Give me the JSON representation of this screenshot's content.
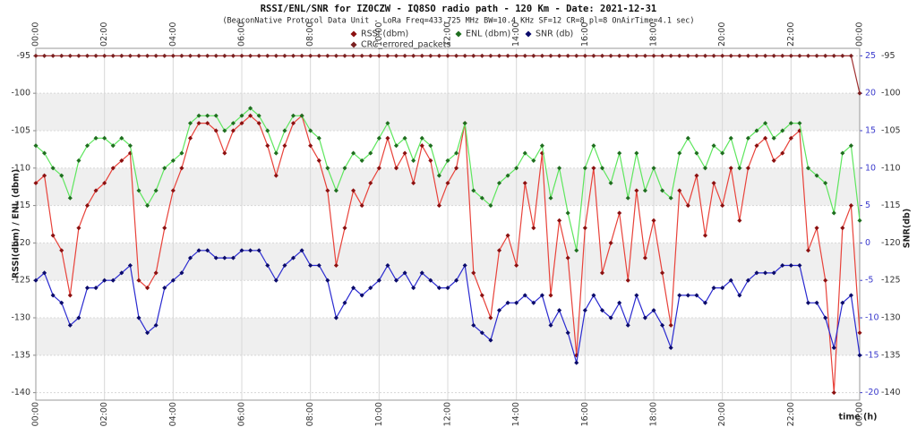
{
  "chart_data": {
    "type": "line",
    "title": "RSSI/ENL/SNR for IZ0CZW - IQ8SO radio path - 120 Km - Date: 2021-12-31",
    "subtitle": "(BeaconNative Protocol Data Unit - LoRa Freq=433.725 MHz BW=10.4 KHz SF=12 CR=8 pl=8 OnAirTime=4.1 sec)",
    "xlabel": "time (h)",
    "ylabel": "RSSI(dbm) / ENL (dbm)",
    "y2label": "SNR(db)",
    "grid": true,
    "y2tick_color": "#3a3acc",
    "xlim": [
      0,
      24
    ],
    "ylim": [
      -94,
      -141
    ],
    "y2lim": [
      26,
      -21
    ],
    "xticks": [
      {
        "value": 0,
        "label": "00:00"
      },
      {
        "value": 2,
        "label": "02:00"
      },
      {
        "value": 4,
        "label": "04:00"
      },
      {
        "value": 6,
        "label": "06:00"
      },
      {
        "value": 8,
        "label": "08:00"
      },
      {
        "value": 10,
        "label": "10:00"
      },
      {
        "value": 12,
        "label": "12:00"
      },
      {
        "value": 14,
        "label": "14:00"
      },
      {
        "value": 16,
        "label": "16:00"
      },
      {
        "value": 18,
        "label": "18:00"
      },
      {
        "value": 20,
        "label": "20:00"
      },
      {
        "value": 22,
        "label": "22:00"
      },
      {
        "value": 24,
        "label": "00:00"
      }
    ],
    "yticks": [
      -95,
      -100,
      -105,
      -110,
      -115,
      -120,
      -125,
      -130,
      -135,
      -140
    ],
    "y2ticks": [
      25,
      20,
      15,
      10,
      5,
      0,
      -5,
      -10,
      -15,
      -20
    ],
    "x": [
      0,
      0.25,
      0.5,
      0.75,
      1,
      1.25,
      1.5,
      1.75,
      2,
      2.25,
      2.5,
      2.75,
      3,
      3.25,
      3.5,
      3.75,
      4,
      4.25,
      4.5,
      4.75,
      5,
      5.25,
      5.5,
      5.75,
      6,
      6.25,
      6.5,
      6.75,
      7,
      7.25,
      7.5,
      7.75,
      8,
      8.25,
      8.5,
      8.75,
      9,
      9.25,
      9.5,
      9.75,
      10,
      10.25,
      10.5,
      10.75,
      11,
      11.25,
      11.5,
      11.75,
      12,
      12.25,
      12.5,
      12.75,
      13,
      13.25,
      13.5,
      13.75,
      14,
      14.25,
      14.5,
      14.75,
      15,
      15.25,
      15.5,
      15.75,
      16,
      16.25,
      16.5,
      16.75,
      17,
      17.25,
      17.5,
      17.75,
      18,
      18.25,
      18.5,
      18.75,
      19,
      19.25,
      19.5,
      19.75,
      20,
      20.25,
      20.5,
      20.75,
      21,
      21.25,
      21.5,
      21.75,
      22,
      22.25,
      22.5,
      22.75,
      23,
      23.25,
      23.5,
      23.75,
      24
    ],
    "series": [
      {
        "name": "RSSI (dbm)",
        "color": "#e8423a",
        "marker_color": "#8b1010",
        "values": [
          -112,
          -111,
          -119,
          -121,
          -127,
          -118,
          -115,
          -113,
          -112,
          -110,
          -109,
          -108,
          -125,
          -126,
          -124,
          -118,
          -113,
          -110,
          -106,
          -104,
          -104,
          -105,
          -108,
          -105,
          -104,
          -103,
          -104,
          -107,
          -111,
          -107,
          -104,
          -103,
          -107,
          -109,
          -113,
          -123,
          -118,
          -113,
          -115,
          -112,
          -110,
          -106,
          -110,
          -108,
          -112,
          -107,
          -109,
          -115,
          -112,
          -110,
          -104,
          -124,
          -127,
          -130,
          -121,
          -119,
          -123,
          -112,
          -118,
          -108,
          -127,
          -117,
          -122,
          -135,
          -118,
          -110,
          -124,
          -120,
          -116,
          -125,
          -113,
          -122,
          -117,
          -124,
          -131,
          -113,
          -115,
          -111,
          -119,
          -112,
          -115,
          -110,
          -117,
          -110,
          -107,
          -106,
          -109,
          -108,
          -106,
          -105,
          -121,
          -118,
          -125,
          -140,
          -118,
          -115,
          -132
        ]
      },
      {
        "name": "ENL (dbm)",
        "color": "#5ee65e",
        "marker_color": "#1f6e1f",
        "values": [
          -107,
          -108,
          -110,
          -111,
          -114,
          -109,
          -107,
          -106,
          -106,
          -107,
          -106,
          -107,
          -113,
          -115,
          -113,
          -110,
          -109,
          -108,
          -104,
          -103,
          -103,
          -103,
          -105,
          -104,
          -103,
          -102,
          -103,
          -105,
          -108,
          -105,
          -103,
          -103,
          -105,
          -106,
          -110,
          -113,
          -110,
          -108,
          -109,
          -108,
          -106,
          -104,
          -107,
          -106,
          -109,
          -106,
          -107,
          -111,
          -109,
          -108,
          -104,
          -113,
          -114,
          -115,
          -112,
          -111,
          -110,
          -108,
          -109,
          -107,
          -114,
          -110,
          -116,
          -121,
          -110,
          -107,
          -110,
          -112,
          -108,
          -114,
          -108,
          -113,
          -110,
          -113,
          -114,
          -108,
          -106,
          -108,
          -110,
          -107,
          -108,
          -106,
          -110,
          -106,
          -105,
          -104,
          -106,
          -105,
          -104,
          -104,
          -110,
          -111,
          -112,
          -116,
          -108,
          -107,
          -117
        ]
      },
      {
        "name": "SNR (db)",
        "color": "#2a2ad0",
        "marker_color": "#0a0a6a",
        "axis": "y2",
        "values": [
          -5,
          -4,
          -7,
          -8,
          -11,
          -10,
          -6,
          -6,
          -5,
          -5,
          -4,
          -3,
          -10,
          -12,
          -11,
          -6,
          -5,
          -4,
          -2,
          -1,
          -1,
          -2,
          -2,
          -2,
          -1,
          -1,
          -1,
          -3,
          -5,
          -3,
          -2,
          -1,
          -3,
          -3,
          -5,
          -10,
          -8,
          -6,
          -7,
          -6,
          -5,
          -3,
          -5,
          -4,
          -6,
          -4,
          -5,
          -6,
          -6,
          -5,
          -3,
          -11,
          -12,
          -13,
          -9,
          -8,
          -8,
          -7,
          -8,
          -7,
          -11,
          -9,
          -12,
          -16,
          -9,
          -7,
          -9,
          -10,
          -8,
          -11,
          -7,
          -10,
          -9,
          -11,
          -14,
          -7,
          -7,
          -7,
          -8,
          -6,
          -6,
          -5,
          -7,
          -5,
          -4,
          -4,
          -4,
          -3,
          -3,
          -3,
          -8,
          -8,
          -10,
          -14,
          -8,
          -7,
          -15
        ]
      },
      {
        "name": "CRC_errored_packets",
        "color": "#a03030",
        "marker_color": "#7a2020",
        "values": [
          -95,
          -95,
          -95,
          -95,
          -95,
          -95,
          -95,
          -95,
          -95,
          -95,
          -95,
          -95,
          -95,
          -95,
          -95,
          -95,
          -95,
          -95,
          -95,
          -95,
          -95,
          -95,
          -95,
          -95,
          -95,
          -95,
          -95,
          -95,
          -95,
          -95,
          -95,
          -95,
          -95,
          -95,
          -95,
          -95,
          -95,
          -95,
          -95,
          -95,
          -95,
          -95,
          -95,
          -95,
          -95,
          -95,
          -95,
          -95,
          -95,
          -95,
          -95,
          -95,
          -95,
          -95,
          -95,
          -95,
          -95,
          -95,
          -95,
          -95,
          -95,
          -95,
          -95,
          -95,
          -95,
          -95,
          -95,
          -95,
          -95,
          -95,
          -95,
          -95,
          -95,
          -95,
          -95,
          -95,
          -95,
          -95,
          -95,
          -95,
          -95,
          -95,
          -95,
          -95,
          -95,
          -95,
          -95,
          -95,
          -95,
          -95,
          -95,
          -95,
          -95,
          -95,
          -95,
          -95,
          -100
        ]
      }
    ]
  }
}
